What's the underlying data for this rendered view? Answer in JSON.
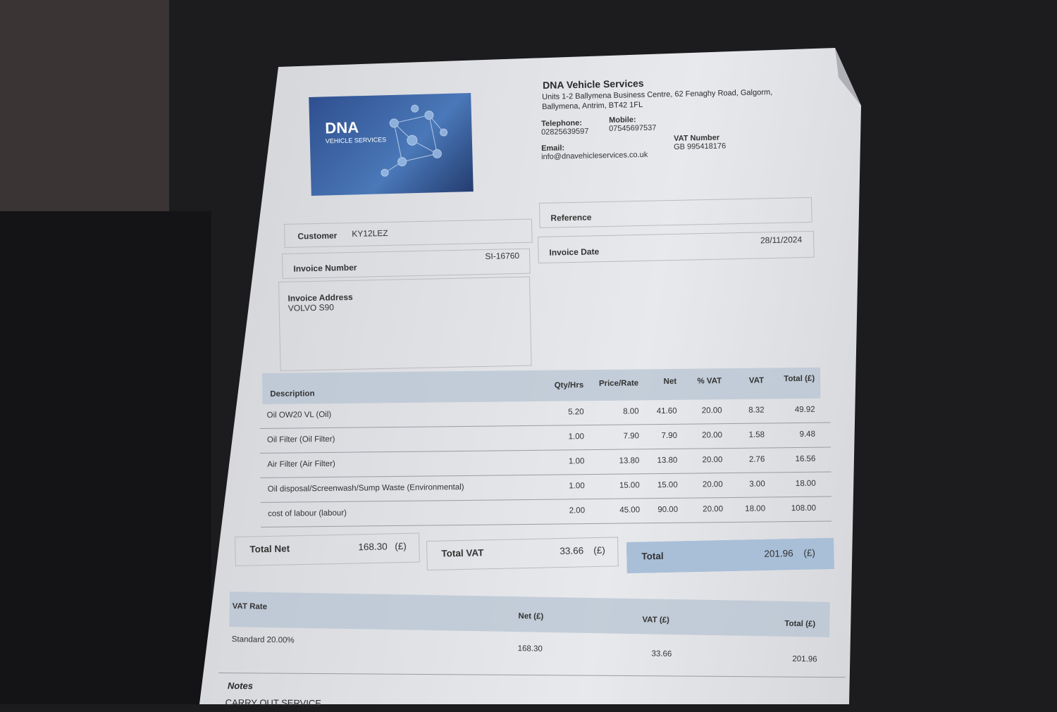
{
  "company": {
    "logo_text": "DNA",
    "logo_subtext": "VEHICLE SERVICES",
    "name": "DNA Vehicle Services",
    "address_line1": "Units 1-2 Ballymena Business Centre, 62 Fenaghy Road, Galgorm,",
    "address_line2": "Ballymena, Antrim, BT42 1FL",
    "telephone_label": "Telephone:",
    "telephone": "02825639597",
    "mobile_label": "Mobile:",
    "mobile": "07545697537",
    "email_label": "Email:",
    "email": "info@dnavehicleservices.co.uk",
    "vat_label": "VAT Number",
    "vat": "GB 995418176"
  },
  "invoice": {
    "customer_label": "Customer",
    "customer": "KY12LEZ",
    "reference_label": "Reference",
    "number_label": "Invoice Number",
    "number": "SI-16760",
    "date_label": "Invoice Date",
    "date": "28/11/2024",
    "address_label": "Invoice Address",
    "address": "VOLVO S90"
  },
  "table": {
    "headers": [
      "Description",
      "Qty/Hrs",
      "Price/Rate",
      "Net",
      "% VAT",
      "VAT",
      "Total (£)"
    ],
    "rows": [
      [
        "Oil OW20 VL (Oil)",
        "5.20",
        "8.00",
        "41.60",
        "20.00",
        "8.32",
        "49.92"
      ],
      [
        "Oil Filter (Oil Filter)",
        "1.00",
        "7.90",
        "7.90",
        "20.00",
        "1.58",
        "9.48"
      ],
      [
        "Air Filter (Air Filter)",
        "1.00",
        "13.80",
        "13.80",
        "20.00",
        "2.76",
        "16.56"
      ],
      [
        "Oil disposal/Screenwash/Sump Waste (Environmental)",
        "1.00",
        "15.00",
        "15.00",
        "20.00",
        "3.00",
        "18.00"
      ],
      [
        "cost of labour (labour)",
        "2.00",
        "45.00",
        "90.00",
        "20.00",
        "18.00",
        "108.00"
      ]
    ]
  },
  "totals": {
    "net_label": "Total Net",
    "net": "168.30",
    "net_unit": "(£)",
    "vat_label": "Total VAT",
    "vat": "33.66",
    "vat_unit": "(£)",
    "total_label": "Total",
    "total": "201.96",
    "total_unit": "(£)"
  },
  "vat_summary": {
    "headers": [
      "VAT Rate",
      "Net (£)",
      "VAT (£)",
      "Total (£)"
    ],
    "row": [
      "Standard 20.00%",
      "168.30",
      "33.66",
      "201.96"
    ]
  },
  "notes": {
    "label": "Notes",
    "text": "CARRY OUT SERVICE"
  }
}
